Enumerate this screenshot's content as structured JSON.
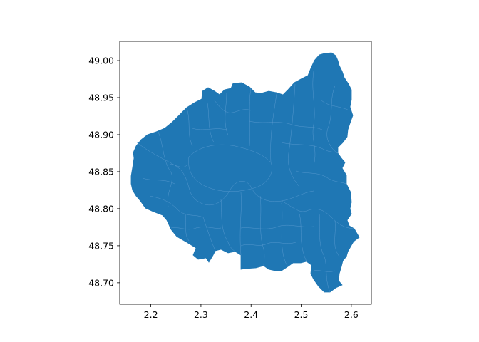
{
  "chart_data": {
    "type": "map",
    "title": "",
    "xlabel": "",
    "ylabel": "",
    "xlim": [
      2.138,
      2.64
    ],
    "ylim": [
      48.671,
      49.026
    ],
    "x_ticks": [
      "2.2",
      "2.3",
      "2.4",
      "2.5",
      "2.6"
    ],
    "x_tick_values": [
      2.2,
      2.3,
      2.4,
      2.5,
      2.6
    ],
    "y_ticks": [
      "49.00",
      "48.95",
      "48.90",
      "48.85",
      "48.80",
      "48.75",
      "48.70"
    ],
    "y_tick_values": [
      49.0,
      48.95,
      48.9,
      48.85,
      48.8,
      48.75,
      48.7
    ],
    "grid": false,
    "fill_color": "#1f77b4",
    "boundary_color": "#5a9bd0",
    "outline": [
      [
        2.153,
        48.87
      ],
      [
        2.158,
        48.88
      ],
      [
        2.166,
        48.89
      ],
      [
        2.178,
        48.898
      ],
      [
        2.19,
        48.903
      ],
      [
        2.205,
        48.907
      ],
      [
        2.218,
        48.912
      ],
      [
        2.23,
        48.92
      ],
      [
        2.245,
        48.932
      ],
      [
        2.258,
        48.942
      ],
      [
        2.272,
        48.948
      ],
      [
        2.283,
        48.95
      ],
      [
        2.288,
        48.958
      ],
      [
        2.298,
        48.956
      ],
      [
        2.308,
        48.952
      ],
      [
        2.318,
        48.96
      ],
      [
        2.327,
        48.963
      ],
      [
        2.333,
        48.968
      ],
      [
        2.345,
        48.97
      ],
      [
        2.358,
        48.966
      ],
      [
        2.368,
        48.958
      ],
      [
        2.38,
        48.959
      ],
      [
        2.392,
        48.958
      ],
      [
        2.402,
        48.96
      ],
      [
        2.412,
        48.958
      ],
      [
        2.42,
        48.968
      ],
      [
        2.432,
        48.972
      ],
      [
        2.44,
        48.978
      ],
      [
        2.445,
        48.99
      ],
      [
        2.452,
        49.002
      ],
      [
        2.46,
        49.008
      ],
      [
        2.466,
        49.01
      ],
      [
        2.473,
        49.004
      ],
      [
        2.478,
        48.996
      ],
      [
        2.485,
        48.983
      ],
      [
        2.493,
        48.968
      ],
      [
        2.5,
        48.955
      ],
      [
        2.507,
        48.945
      ],
      [
        2.513,
        48.937
      ],
      [
        2.512,
        48.93
      ],
      [
        2.507,
        48.922
      ],
      [
        2.502,
        48.915
      ],
      [
        2.5,
        48.905
      ],
      [
        2.494,
        48.898
      ],
      [
        2.485,
        48.892
      ],
      [
        2.478,
        48.88
      ],
      [
        2.482,
        48.873
      ],
      [
        2.48,
        48.862
      ],
      [
        2.488,
        48.85
      ],
      [
        2.492,
        48.835
      ],
      [
        2.494,
        48.82
      ],
      [
        2.497,
        48.808
      ],
      [
        2.495,
        48.792
      ],
      [
        2.5,
        48.785
      ],
      [
        2.512,
        48.776
      ],
      [
        2.527,
        48.77
      ],
      [
        2.541,
        48.766
      ],
      [
        2.552,
        48.762
      ],
      [
        2.562,
        48.76
      ],
      [
        2.572,
        48.758
      ],
      [
        2.582,
        48.754
      ],
      [
        2.592,
        48.748
      ],
      [
        2.6,
        48.745
      ],
      [
        2.61,
        48.76
      ],
      [
        2.6,
        48.77
      ],
      [
        2.596,
        48.782
      ],
      [
        2.593,
        48.792
      ],
      [
        2.592,
        48.8
      ],
      [
        2.588,
        48.812
      ],
      [
        2.584,
        48.826
      ],
      [
        2.578,
        48.84
      ],
      [
        2.573,
        48.856
      ],
      [
        2.575,
        48.862
      ],
      [
        2.57,
        48.87
      ],
      [
        2.576,
        48.882
      ],
      [
        2.583,
        48.893
      ],
      [
        2.59,
        48.905
      ],
      [
        2.595,
        48.918
      ],
      [
        2.598,
        48.93
      ],
      [
        2.592,
        48.943
      ],
      [
        2.584,
        48.95
      ],
      [
        2.576,
        48.962
      ],
      [
        2.57,
        48.972
      ],
      [
        2.562,
        48.98
      ],
      [
        2.553,
        48.985
      ],
      [
        2.548,
        48.99
      ],
      [
        2.54,
        48.995
      ],
      [
        2.53,
        49.002
      ],
      [
        2.522,
        49.006
      ],
      [
        2.512,
        49.01
      ],
      [
        2.503,
        49.004
      ],
      [
        2.492,
        48.997
      ],
      [
        2.48,
        48.992
      ],
      [
        2.47,
        48.985
      ],
      [
        2.458,
        48.976
      ],
      [
        2.448,
        48.966
      ],
      [
        2.438,
        48.958
      ],
      [
        2.425,
        48.952
      ],
      [
        2.41,
        48.948
      ],
      [
        2.392,
        48.945
      ]
    ]
  }
}
